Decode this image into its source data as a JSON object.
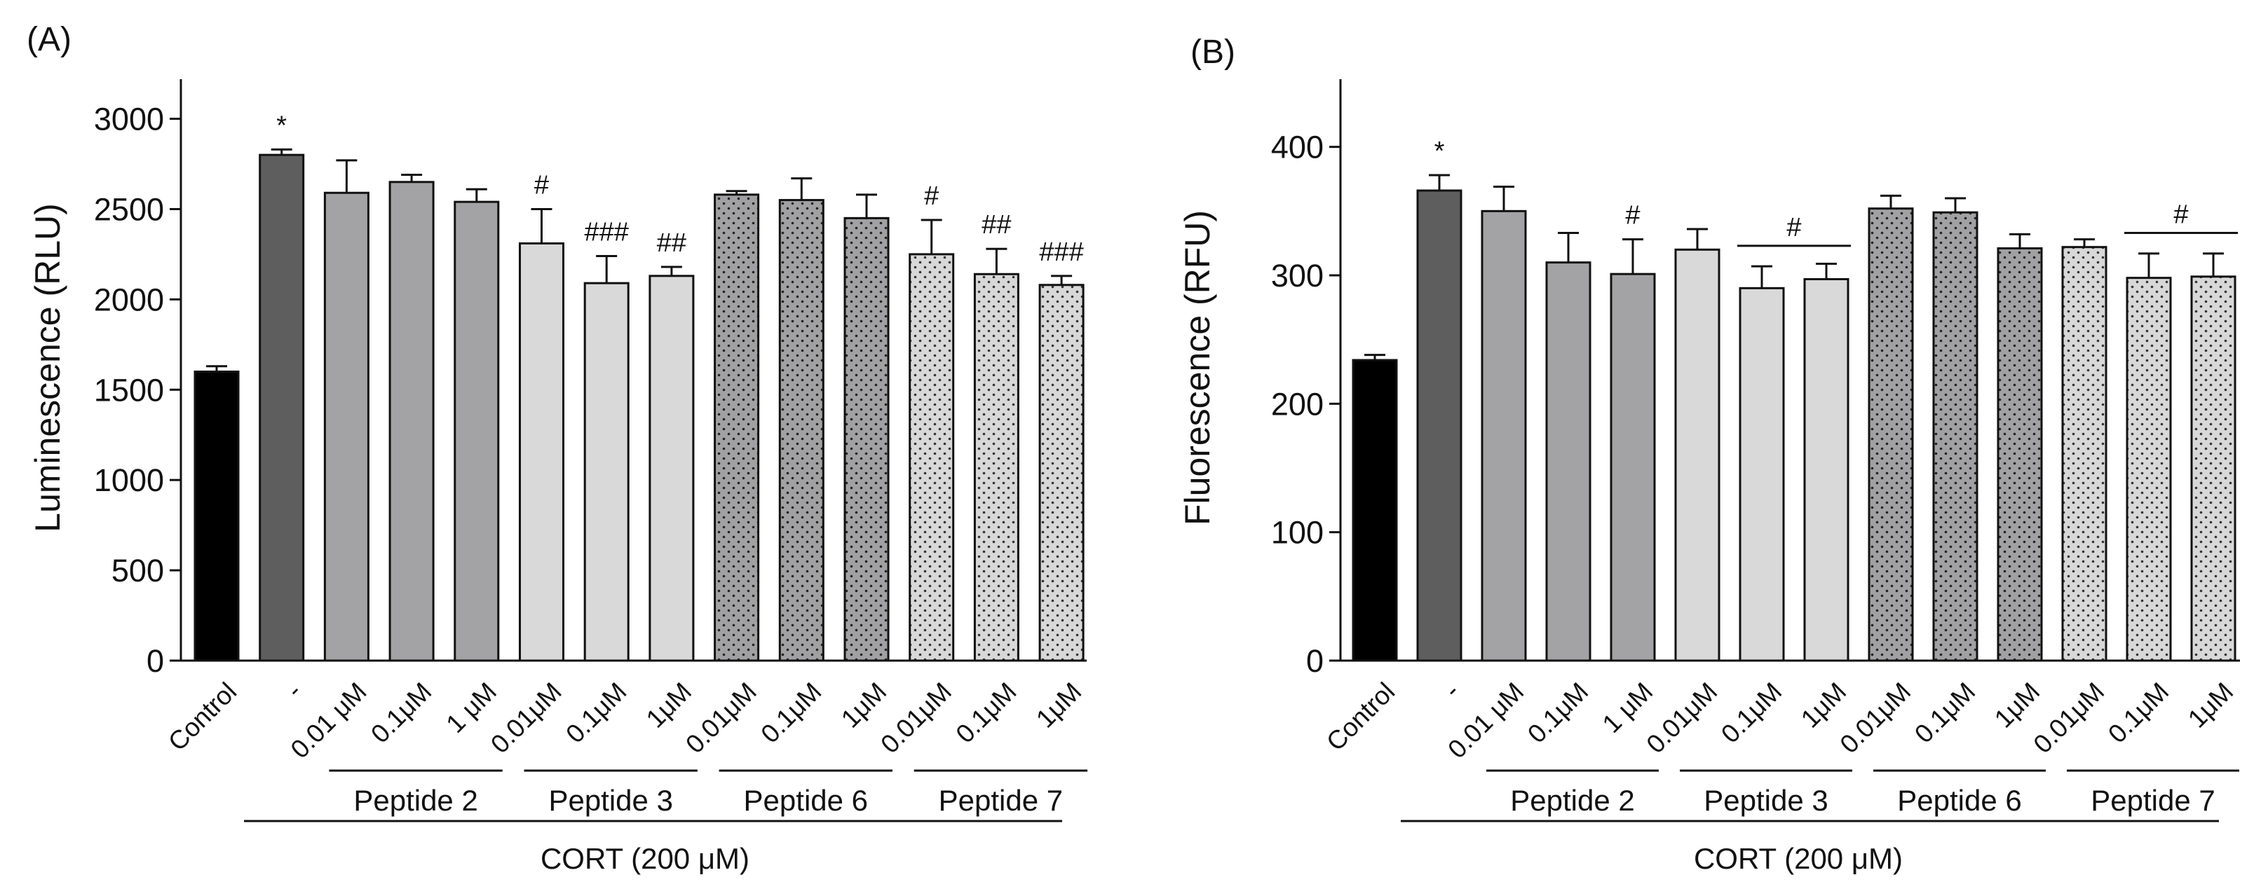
{
  "panels": [
    {
      "label": "(A)",
      "ylabel": "Luminescence (RLU)",
      "cort_label": "CORT (200 μM)"
    },
    {
      "label": "(B)",
      "ylabel": "Fluorescence (RFU)",
      "cort_label": "CORT (200 μM)"
    }
  ],
  "colors": {
    "black": "#000000",
    "dark_gray": "#5e5e5e",
    "mid_gray": "#a3a3a6",
    "light_gray": "#d9d9d9",
    "dotted_mid_bg": "#a1a1a3",
    "dotted_light_bg": "#d8d8d8"
  },
  "chart_data": [
    {
      "type": "bar",
      "title": "(A)",
      "xlabel": "CORT (200 μM)",
      "ylabel": "Luminescence (RLU)",
      "ylim": [
        0,
        3200
      ],
      "yticks": [
        0,
        500,
        1000,
        1500,
        2000,
        2500,
        3000
      ],
      "categories": [
        "Control",
        "-",
        "0.01 μM",
        "0.1μM",
        "1 μM",
        "0.01μM",
        "0.1μM",
        "1μM",
        "0.01μM",
        "0.1μM",
        "1μM",
        "0.01μM",
        "0.1μM",
        "1μM"
      ],
      "values": [
        1600,
        2800,
        2590,
        2650,
        2540,
        2310,
        2090,
        2130,
        2580,
        2550,
        2450,
        2250,
        2140,
        2080
      ],
      "errors": [
        30,
        30,
        180,
        40,
        70,
        190,
        150,
        50,
        20,
        120,
        130,
        190,
        140,
        50
      ],
      "fills": [
        "black",
        "dark_gray",
        "mid_gray",
        "mid_gray",
        "mid_gray",
        "light_gray",
        "light_gray",
        "light_gray",
        "dotted_mid",
        "dotted_mid",
        "dotted_mid",
        "dotted_light",
        "dotted_light",
        "dotted_light"
      ],
      "significance": [
        "",
        "*",
        "",
        "",
        "",
        "#",
        "###",
        "##",
        "",
        "",
        "",
        "#",
        "##",
        "###"
      ],
      "groups": [
        {
          "label": "Peptide 2",
          "start": 2,
          "end": 4
        },
        {
          "label": "Peptide 3",
          "start": 5,
          "end": 7
        },
        {
          "label": "Peptide 6",
          "start": 8,
          "end": 10
        },
        {
          "label": "Peptide 7",
          "start": 11,
          "end": 13
        }
      ],
      "cort_range": [
        1,
        13
      ],
      "brackets": []
    },
    {
      "type": "bar",
      "title": "(B)",
      "xlabel": "CORT (200 μM)",
      "ylabel": "Fluorescence (RFU)",
      "ylim": [
        0,
        450
      ],
      "yticks": [
        0,
        100,
        200,
        300,
        400
      ],
      "categories": [
        "Control",
        "-",
        "0.01 μM",
        "0.1μM",
        "1 μM",
        "0.01μM",
        "0.1μM",
        "1μM",
        "0.01μM",
        "0.1μM",
        "1μM",
        "0.01μM",
        "0.1μM",
        "1μM"
      ],
      "values": [
        234,
        366,
        350,
        310,
        301,
        320,
        290,
        297,
        352,
        349,
        321,
        322,
        298,
        299
      ],
      "errors": [
        4,
        12,
        19,
        23,
        27,
        16,
        17,
        12,
        10,
        11,
        11,
        6,
        19,
        18
      ],
      "fills": [
        "black",
        "dark_gray",
        "mid_gray",
        "mid_gray",
        "mid_gray",
        "light_gray",
        "light_gray",
        "light_gray",
        "dotted_mid",
        "dotted_mid",
        "dotted_mid",
        "dotted_light",
        "dotted_light",
        "dotted_light"
      ],
      "significance": [
        "",
        "*",
        "",
        "",
        "#",
        "",
        "",
        "",
        "",
        "",
        "",
        "",
        "",
        ""
      ],
      "groups": [
        {
          "label": "Peptide 2",
          "start": 2,
          "end": 4
        },
        {
          "label": "Peptide 3",
          "start": 5,
          "end": 7
        },
        {
          "label": "Peptide 6",
          "start": 8,
          "end": 10
        },
        {
          "label": "Peptide 7",
          "start": 11,
          "end": 13
        }
      ],
      "cort_range": [
        1,
        13
      ],
      "brackets": [
        {
          "start": 6,
          "end": 7,
          "value": 323,
          "label": "#"
        },
        {
          "start": 12,
          "end": 13,
          "value": 333,
          "label": "#"
        }
      ]
    }
  ]
}
